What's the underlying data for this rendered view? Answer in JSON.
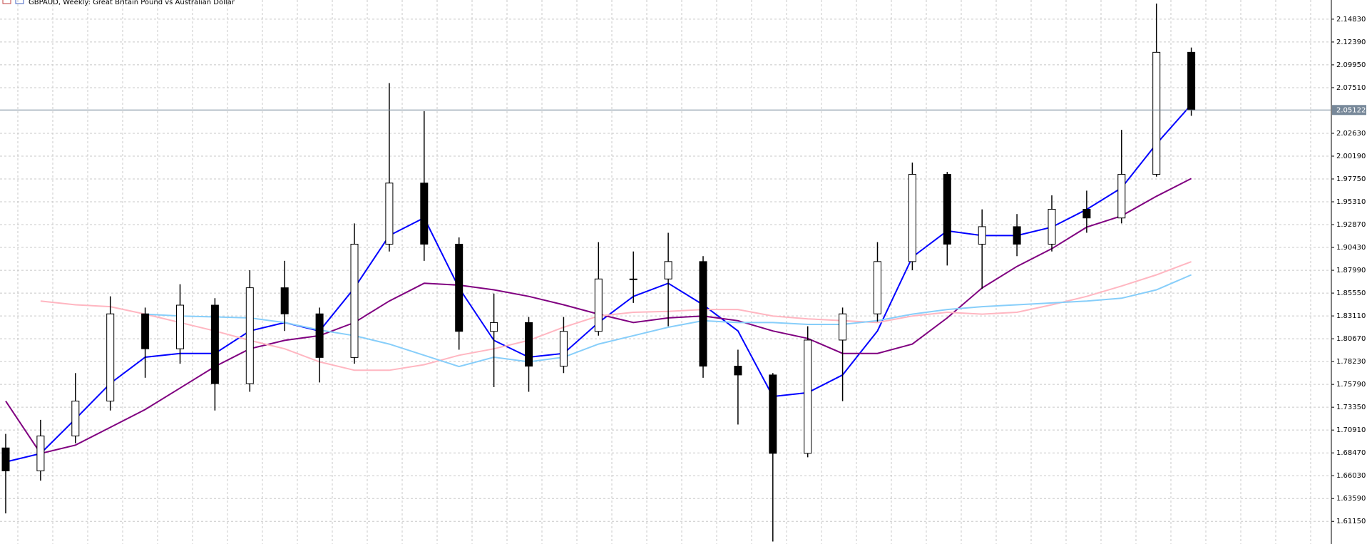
{
  "chart_data": {
    "type": "candlestick",
    "title": "GBPAUD, Weekly:  Great Britain Pound vs Australian Dollar",
    "open": [
      1.69,
      1.6655,
      1.7028,
      1.7401,
      1.8333,
      1.796,
      1.8426,
      1.7587,
      1.8612,
      1.8333,
      1.7867,
      1.9078,
      1.9731,
      1.9078,
      1.8146,
      1.824,
      1.7774,
      1.8146,
      1.8706,
      1.8706,
      1.8892,
      1.7774,
      1.768,
      1.6842,
      1.8053,
      1.8333,
      1.8892,
      1.9824,
      1.9078,
      1.9265,
      1.9078,
      1.9451,
      1.9358,
      1.9824,
      2.1129
    ],
    "high": [
      1.705,
      1.72,
      1.77,
      1.852,
      1.84,
      1.865,
      1.85,
      1.88,
      1.89,
      1.84,
      1.93,
      2.08,
      2.05,
      1.915,
      1.855,
      1.83,
      1.83,
      1.91,
      1.9,
      1.92,
      1.895,
      1.795,
      1.77,
      1.82,
      1.84,
      1.91,
      1.995,
      1.985,
      1.945,
      1.94,
      1.96,
      1.965,
      2.03,
      2.165,
      2.118
    ],
    "low": [
      1.62,
      1.655,
      1.695,
      1.73,
      1.765,
      1.78,
      1.73,
      1.75,
      1.815,
      1.76,
      1.78,
      1.9,
      1.89,
      1.795,
      1.755,
      1.75,
      1.77,
      1.81,
      1.845,
      1.82,
      1.765,
      1.715,
      1.59,
      1.68,
      1.74,
      1.825,
      1.88,
      1.885,
      1.86,
      1.895,
      1.9,
      1.92,
      1.93,
      1.98,
      2.045
    ],
    "close": [
      1.6655,
      1.7028,
      1.7401,
      1.8333,
      1.796,
      1.8426,
      1.7587,
      1.8612,
      1.8333,
      1.7867,
      1.9078,
      1.9731,
      1.9078,
      1.8146,
      1.824,
      1.7774,
      1.8146,
      1.8706,
      1.8706,
      1.8892,
      1.7774,
      1.768,
      1.6842,
      1.8053,
      1.8333,
      1.8892,
      1.9824,
      1.9078,
      1.9265,
      1.9078,
      1.9451,
      1.9358,
      1.9824,
      2.1129,
      2.0512
    ],
    "candle_color": "#000000",
    "series": [
      {
        "color": "#0000ff",
        "values": [
          1.675,
          1.684,
          1.721,
          1.759,
          1.787,
          1.791,
          1.791,
          1.815,
          1.824,
          1.815,
          1.861,
          1.917,
          1.936,
          1.861,
          1.805,
          1.787,
          1.791,
          1.824,
          1.852,
          1.866,
          1.843,
          1.815,
          1.745,
          1.749,
          1.768,
          1.815,
          1.894,
          1.922,
          1.917,
          1.917,
          1.926,
          1.945,
          1.968,
          2.015,
          2.057
        ]
      },
      {
        "color": "#800080",
        "values": [
          1.74,
          1.684,
          1.693,
          1.712,
          1.731,
          1.754,
          1.777,
          1.796,
          1.805,
          1.81,
          1.824,
          1.847,
          1.866,
          1.864,
          1.859,
          1.852,
          1.843,
          1.833,
          1.824,
          1.829,
          1.831,
          1.826,
          1.815,
          1.807,
          1.791,
          1.791,
          1.801,
          1.829,
          1.861,
          1.884,
          1.903,
          1.926,
          1.938,
          1.959,
          1.978
        ]
      },
      {
        "color": "#ffb6c1",
        "values": [
          null,
          1.847,
          1.843,
          1.841,
          1.833,
          1.824,
          1.815,
          1.805,
          1.796,
          1.782,
          1.773,
          1.773,
          1.779,
          1.789,
          1.796,
          1.805,
          1.819,
          1.831,
          1.835,
          1.836,
          1.838,
          1.838,
          1.831,
          1.828,
          1.826,
          1.824,
          1.831,
          1.835,
          1.833,
          1.835,
          1.843,
          1.852,
          1.863,
          1.875,
          1.889
        ]
      },
      {
        "color": "#87cefa",
        "values": [
          null,
          null,
          null,
          null,
          1.833,
          1.831,
          1.83,
          1.829,
          1.824,
          1.816,
          1.81,
          1.801,
          1.789,
          1.777,
          1.787,
          1.782,
          1.787,
          1.801,
          1.81,
          1.819,
          1.826,
          1.824,
          1.824,
          1.822,
          1.822,
          1.826,
          1.833,
          1.838,
          1.841,
          1.843,
          1.845,
          1.847,
          1.85,
          1.859,
          1.875
        ]
      }
    ],
    "ylim": [
      1.5873,
      2.1688
    ],
    "yticks": [
      {
        "value": 2.1483,
        "label": "2.14830"
      },
      {
        "value": 2.1239,
        "label": "2.12390"
      },
      {
        "value": 2.0995,
        "label": "2.09950"
      },
      {
        "value": 2.0751,
        "label": "2.07510"
      },
      {
        "value": 2.0263,
        "label": "2.02630"
      },
      {
        "value": 2.0019,
        "label": "2.00190"
      },
      {
        "value": 1.9775,
        "label": "1.97750"
      },
      {
        "value": 1.9531,
        "label": "1.95310"
      },
      {
        "value": 1.9287,
        "label": "1.92870"
      },
      {
        "value": 1.9043,
        "label": "1.90430"
      },
      {
        "value": 1.8799,
        "label": "1.87990"
      },
      {
        "value": 1.8555,
        "label": "1.85550"
      },
      {
        "value": 1.8311,
        "label": "1.83110"
      },
      {
        "value": 1.8067,
        "label": "1.80670"
      },
      {
        "value": 1.7823,
        "label": "1.78230"
      },
      {
        "value": 1.7579,
        "label": "1.75790"
      },
      {
        "value": 1.7335,
        "label": "1.73350"
      },
      {
        "value": 1.7091,
        "label": "1.70910"
      },
      {
        "value": 1.6847,
        "label": "1.68470"
      },
      {
        "value": 1.6603,
        "label": "1.66030"
      },
      {
        "value": 1.6359,
        "label": "1.63590"
      },
      {
        "value": 1.6115,
        "label": "1.61150"
      }
    ],
    "current_price": {
      "value": 2.05122,
      "label": "2.05122"
    },
    "grid": true
  }
}
